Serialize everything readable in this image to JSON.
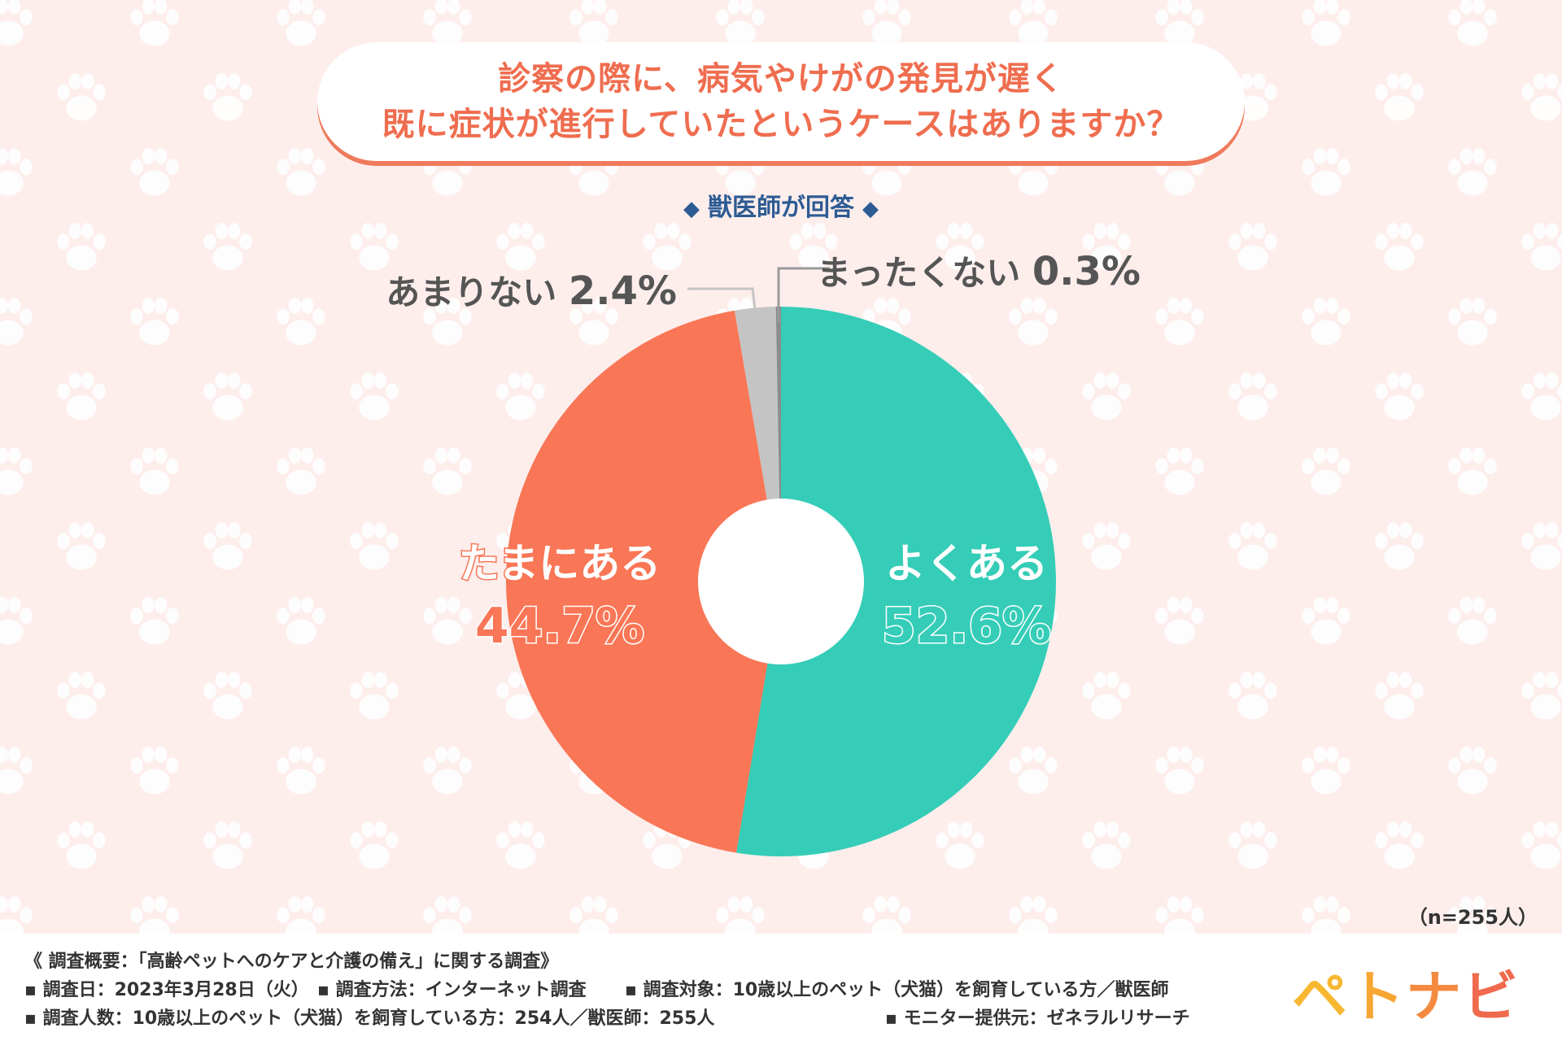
{
  "title": {
    "line1": "診察の際に、病気やけがの発見が遅く",
    "line2": "既に症状が進行していたというケースはありますか？"
  },
  "subtitle": "獣医師が回答",
  "sample_size": "（n=255人）",
  "chart_data": {
    "type": "pie",
    "donut": true,
    "start": "12 o'clock",
    "direction": "clockwise",
    "categories": [
      "よくある",
      "たまにある",
      "あまりない",
      "まったくない"
    ],
    "values": [
      52.6,
      44.7,
      2.4,
      0.3
    ],
    "labels": [
      "52.6%",
      "44.7%",
      "2.4%",
      "0.3%"
    ],
    "colors": [
      "#35cdb7",
      "#f97656",
      "#c4c4c4",
      "#8c8c8c"
    ],
    "n": 255
  },
  "footer": {
    "overview": "《 調査概要：「高齢ペットへのケアと介護の備え」に関する調査》",
    "line2_a": "▪ 調査日：2023年3月28日（火）",
    "line2_b": "▪ 調査方法：インターネット調査",
    "line2_c": "▪ 調査対象：10歳以上のペット（犬猫）を飼育している方／獣医師",
    "line3_a": "▪ 調査人数：10歳以上のペット（犬猫）を飼育している方：254人／獣医師：255人",
    "line3_b": "▪ モニター提供元：ゼネラルリサーチ"
  },
  "logo": {
    "chars": [
      "ペ",
      "ト",
      "ナ",
      "ビ"
    ],
    "colors": [
      "#f7b731",
      "#f7a633",
      "#f48a3f",
      "#f06a4d"
    ]
  }
}
